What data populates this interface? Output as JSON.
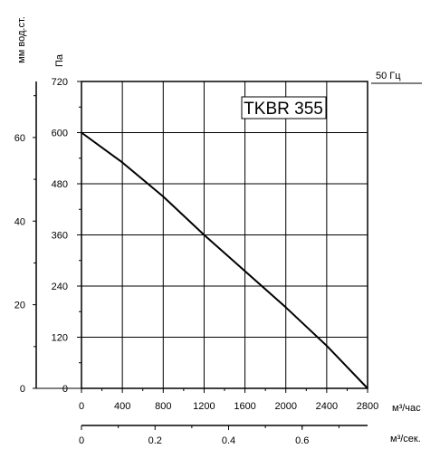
{
  "chart_data": {
    "type": "line",
    "title": "TKBR 355",
    "frequency_label": "50 Гц",
    "y_left_unit": "мм вод.ст.",
    "y_unit": "Па",
    "x_unit": "м³/час",
    "x2_unit": "м³/сек.",
    "x_ticks": [
      "0",
      "400",
      "800",
      "1200",
      "1600",
      "2000",
      "2400",
      "2800"
    ],
    "y_ticks": [
      "0",
      "120",
      "240",
      "360",
      "480",
      "600",
      "720"
    ],
    "y_left_ticks": [
      "0",
      "20",
      "40",
      "60"
    ],
    "x2_ticks": [
      "0",
      "0.2",
      "0.4",
      "0.6"
    ],
    "xlim": [
      0,
      2800
    ],
    "ylim": [
      0,
      720
    ],
    "x2lim": [
      0,
      0.7778
    ],
    "y_left_lim": [
      0,
      73.4
    ],
    "grid": true,
    "series": [
      {
        "color": "#000000",
        "x": [
          0,
          400,
          800,
          1200,
          1600,
          2000,
          2400,
          2800
        ],
        "y": [
          600,
          530,
          450,
          360,
          275,
          190,
          100,
          0
        ]
      }
    ]
  }
}
